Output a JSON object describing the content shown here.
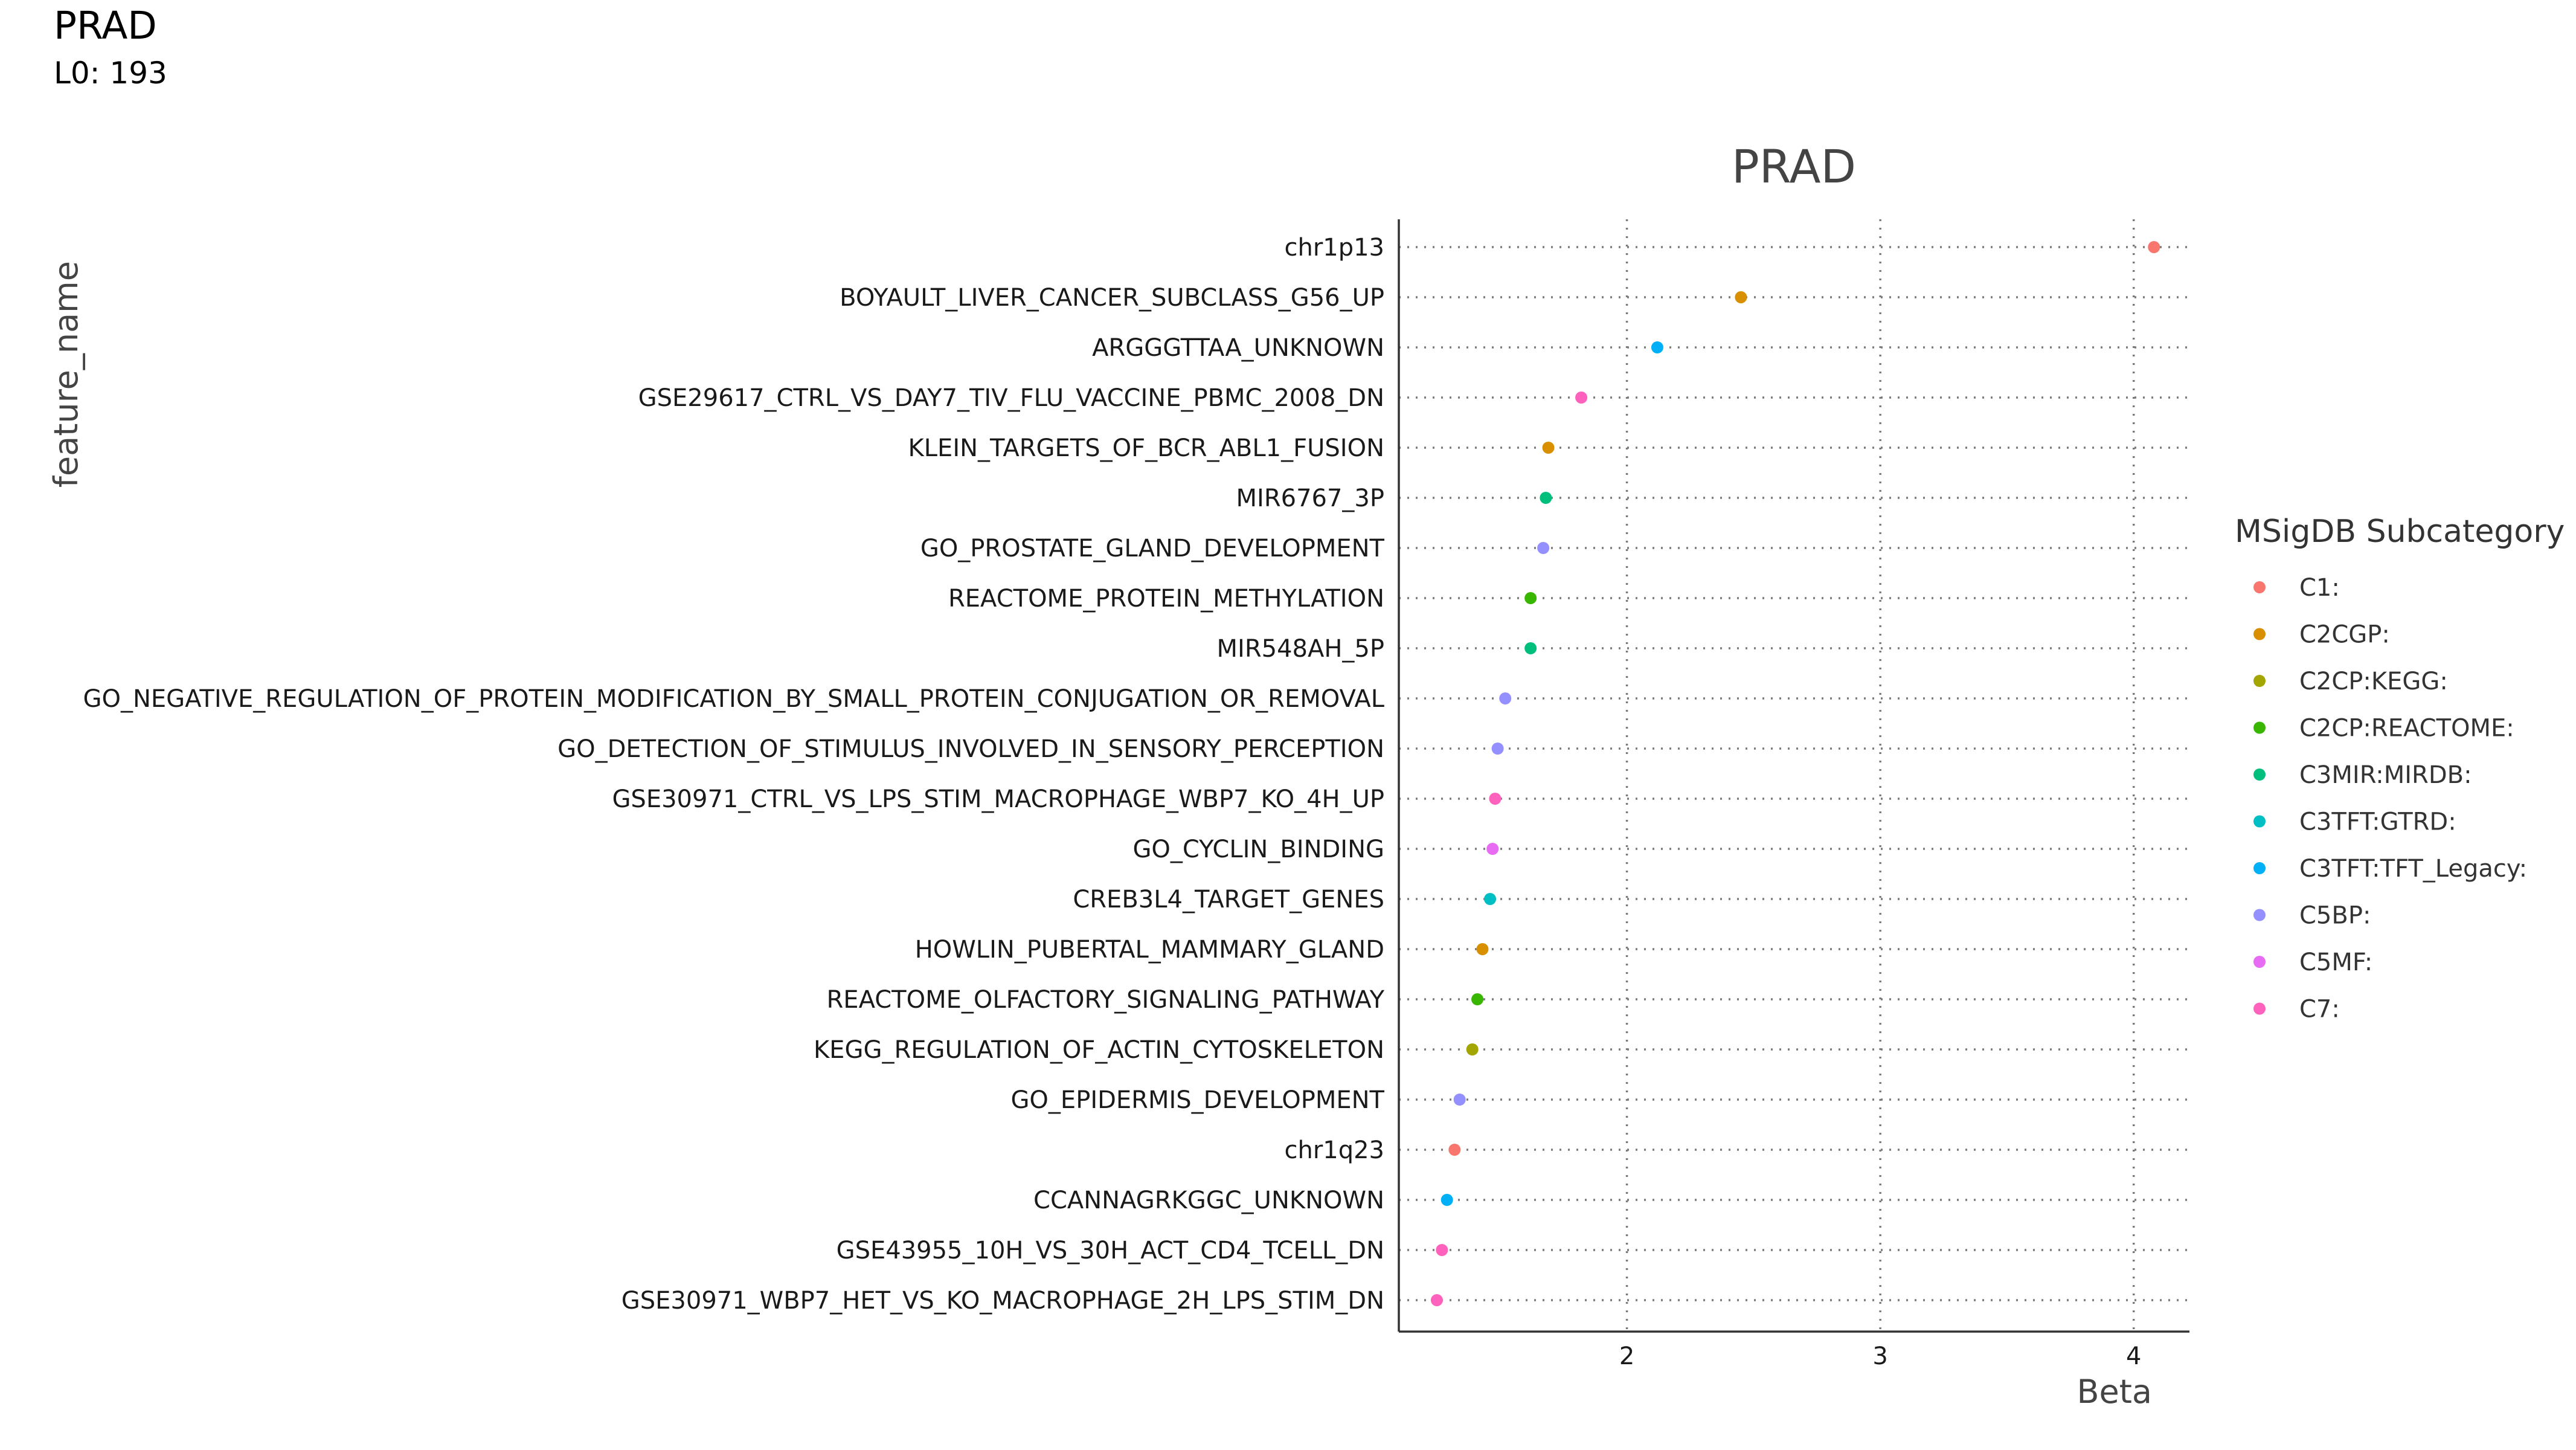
{
  "header": {
    "title": "PRAD",
    "subtitle": "L0: 193"
  },
  "chart_data": {
    "type": "scatter",
    "title": "PRAD",
    "xlabel": "Beta",
    "ylabel": "feature_name",
    "xlim": [
      1.1,
      4.22
    ],
    "xticks": [
      2,
      3,
      4
    ],
    "grid": true,
    "legend": {
      "title": "MSigDB Subcategory",
      "placement": "right",
      "entries": [
        {
          "label": "C1:",
          "color": "#F8766D"
        },
        {
          "label": "C2CGP:",
          "color": "#D89000"
        },
        {
          "label": "C2CP:KEGG:",
          "color": "#A3A500"
        },
        {
          "label": "C2CP:REACTOME:",
          "color": "#39B600"
        },
        {
          "label": "C3MIR:MIRDB:",
          "color": "#00BF7D"
        },
        {
          "label": "C3TFT:GTRD:",
          "color": "#00BFC4"
        },
        {
          "label": "C3TFT:TFT_Legacy:",
          "color": "#00B0F6"
        },
        {
          "label": "C5BP:",
          "color": "#9590FF"
        },
        {
          "label": "C5MF:",
          "color": "#E76BF3"
        },
        {
          "label": "C7:",
          "color": "#FF62BC"
        }
      ]
    },
    "points": [
      {
        "feature": "chr1p13",
        "beta": 4.08,
        "category": "C1:"
      },
      {
        "feature": "BOYAULT_LIVER_CANCER_SUBCLASS_G56_UP",
        "beta": 2.45,
        "category": "C2CGP:"
      },
      {
        "feature": "ARGGGTTAA_UNKNOWN",
        "beta": 2.12,
        "category": "C3TFT:TFT_Legacy:"
      },
      {
        "feature": "GSE29617_CTRL_VS_DAY7_TIV_FLU_VACCINE_PBMC_2008_DN",
        "beta": 1.82,
        "category": "C7:"
      },
      {
        "feature": "KLEIN_TARGETS_OF_BCR_ABL1_FUSION",
        "beta": 1.69,
        "category": "C2CGP:"
      },
      {
        "feature": "MIR6767_3P",
        "beta": 1.68,
        "category": "C3MIR:MIRDB:"
      },
      {
        "feature": "GO_PROSTATE_GLAND_DEVELOPMENT",
        "beta": 1.67,
        "category": "C5BP:"
      },
      {
        "feature": "REACTOME_PROTEIN_METHYLATION",
        "beta": 1.62,
        "category": "C2CP:REACTOME:"
      },
      {
        "feature": "MIR548AH_5P",
        "beta": 1.62,
        "category": "C3MIR:MIRDB:"
      },
      {
        "feature": "GO_NEGATIVE_REGULATION_OF_PROTEIN_MODIFICATION_BY_SMALL_PROTEIN_CONJUGATION_OR_REMOVAL",
        "beta": 1.52,
        "category": "C5BP:"
      },
      {
        "feature": "GO_DETECTION_OF_STIMULUS_INVOLVED_IN_SENSORY_PERCEPTION",
        "beta": 1.49,
        "category": "C5BP:"
      },
      {
        "feature": "GSE30971_CTRL_VS_LPS_STIM_MACROPHAGE_WBP7_KO_4H_UP",
        "beta": 1.48,
        "category": "C7:"
      },
      {
        "feature": "GO_CYCLIN_BINDING",
        "beta": 1.47,
        "category": "C5MF:"
      },
      {
        "feature": "CREB3L4_TARGET_GENES",
        "beta": 1.46,
        "category": "C3TFT:GTRD:"
      },
      {
        "feature": "HOWLIN_PUBERTAL_MAMMARY_GLAND",
        "beta": 1.43,
        "category": "C2CGP:"
      },
      {
        "feature": "REACTOME_OLFACTORY_SIGNALING_PATHWAY",
        "beta": 1.41,
        "category": "C2CP:REACTOME:"
      },
      {
        "feature": "KEGG_REGULATION_OF_ACTIN_CYTOSKELETON",
        "beta": 1.39,
        "category": "C2CP:KEGG:"
      },
      {
        "feature": "GO_EPIDERMIS_DEVELOPMENT",
        "beta": 1.34,
        "category": "C5BP:"
      },
      {
        "feature": "chr1q23",
        "beta": 1.32,
        "category": "C1:"
      },
      {
        "feature": "CCANNAGRKGGC_UNKNOWN",
        "beta": 1.29,
        "category": "C3TFT:TFT_Legacy:"
      },
      {
        "feature": "GSE43955_10H_VS_30H_ACT_CD4_TCELL_DN",
        "beta": 1.27,
        "category": "C7:"
      },
      {
        "feature": "GSE30971_WBP7_HET_VS_KO_MACROPHAGE_2H_LPS_STIM_DN",
        "beta": 1.25,
        "category": "C7:"
      }
    ]
  }
}
